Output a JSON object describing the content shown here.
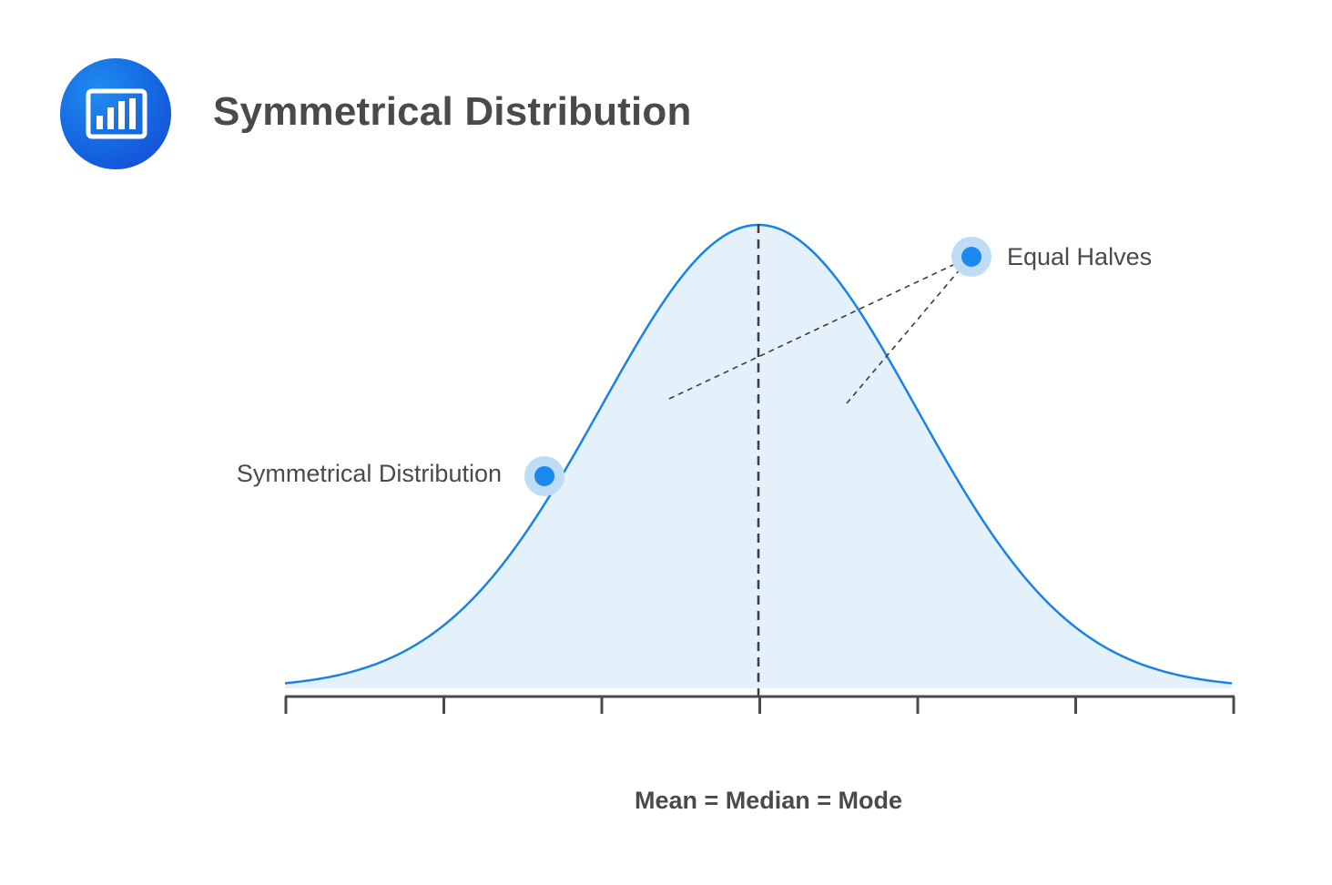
{
  "header": {
    "title": "Symmetrical Distribution",
    "icon": "bar-chart-icon"
  },
  "diagram": {
    "curve_type": "normal-bell-curve",
    "annotations": {
      "left_label": "Symmetrical Distribution",
      "right_label": "Equal Halves"
    },
    "x_axis_label": "Mean = Median = Mode",
    "tick_count": 7,
    "colors": {
      "curve": "#1a82e2",
      "fill": "#e4f1fb",
      "marker": "#1a88ee",
      "marker_halo": "#bfdcf6",
      "axis": "#4a4a4a",
      "title": "#4a4a4a",
      "logo": "#1565e0"
    }
  }
}
